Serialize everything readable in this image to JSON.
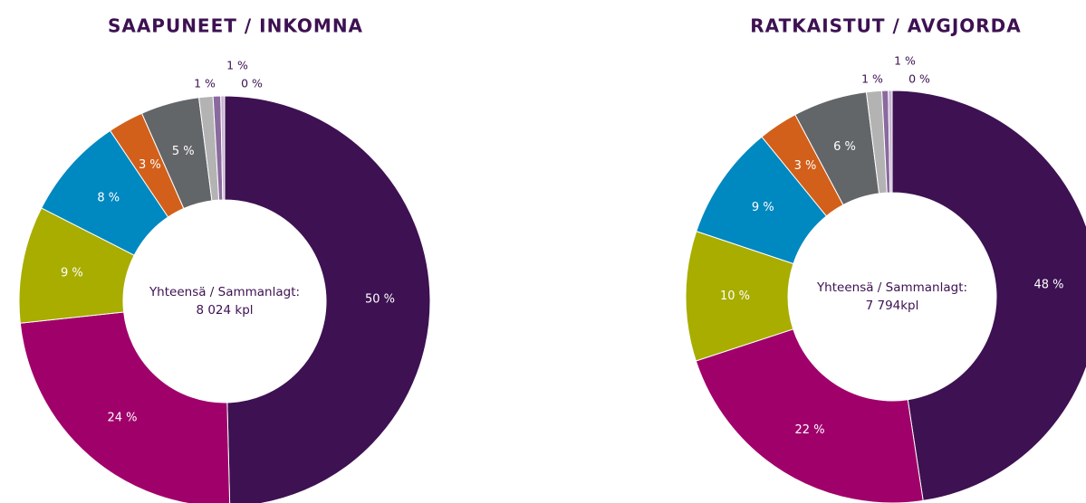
{
  "chart_data": [
    {
      "type": "pie",
      "title": "SAAPUNEET / INKOMNA",
      "values": [
        49.6,
        23.7,
        9.2,
        8.1,
        2.8,
        4.6,
        1.1,
        0.6,
        0.3
      ],
      "value_labels": [
        "50 %",
        "24 %",
        "9 %",
        "8 %",
        "3 %",
        "5 %",
        "1 %",
        "1 %",
        "0 %"
      ],
      "colors": [
        "#3d1152",
        "#a0006a",
        "#a8ad00",
        "#0088c0",
        "#d2601a",
        "#636669",
        "#b3b3b3",
        "#8a6a9e",
        "#c9b6d3"
      ],
      "center_text": [
        "Yhteensä / Sammanlagt:",
        "8 024 kpl"
      ]
    },
    {
      "type": "pie",
      "title": "RATKAISTUT / AVGJORDA",
      "values": [
        47.7,
        22.4,
        10.2,
        9.0,
        3.1,
        5.8,
        1.2,
        0.5,
        0.3
      ],
      "value_labels": [
        "48 %",
        "22 %",
        "10 %",
        "9 %",
        "3 %",
        "6 %",
        "1 %",
        "1 %",
        "0 %"
      ],
      "colors": [
        "#3d1152",
        "#a0006a",
        "#a8ad00",
        "#0088c0",
        "#d2601a",
        "#636669",
        "#b3b3b3",
        "#8a6a9e",
        "#c9b6d3"
      ],
      "center_text": [
        "Yhteensä / Sammanlagt:",
        "7 794kpl"
      ]
    }
  ]
}
